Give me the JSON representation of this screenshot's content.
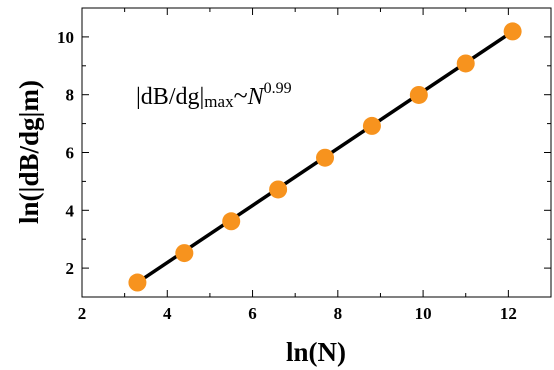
{
  "chart_data": {
    "type": "scatter",
    "xlabel": "ln(N)",
    "ylabel": "ln(|dB/dg|m)",
    "xlim": [
      2,
      13
    ],
    "ylim": [
      1,
      11
    ],
    "x_ticks": [
      2,
      4,
      6,
      8,
      10,
      12
    ],
    "y_ticks": [
      2,
      4,
      6,
      8,
      10
    ],
    "x_tick_labels": [
      "2",
      "4",
      "6",
      "8",
      "10",
      "12"
    ],
    "y_tick_labels": [
      "2",
      "4",
      "6",
      "8",
      "10"
    ],
    "grid": false,
    "annotation": {
      "prefix": "|dB/dg|",
      "subscript": "max",
      "relation": "~",
      "variable": "N",
      "exponent": "0.99"
    },
    "series": [
      {
        "kind": "points",
        "color": "#f7931e",
        "x": [
          3.3,
          4.4,
          5.5,
          6.6,
          7.7,
          8.8,
          9.9,
          11.0,
          12.1
        ],
        "y": [
          1.5,
          2.52,
          3.62,
          4.72,
          5.82,
          6.92,
          7.99,
          9.08,
          10.19
        ]
      },
      {
        "kind": "fit-line",
        "color": "#000000",
        "x": [
          3.3,
          12.1
        ],
        "y": [
          1.5,
          10.19
        ]
      }
    ]
  }
}
